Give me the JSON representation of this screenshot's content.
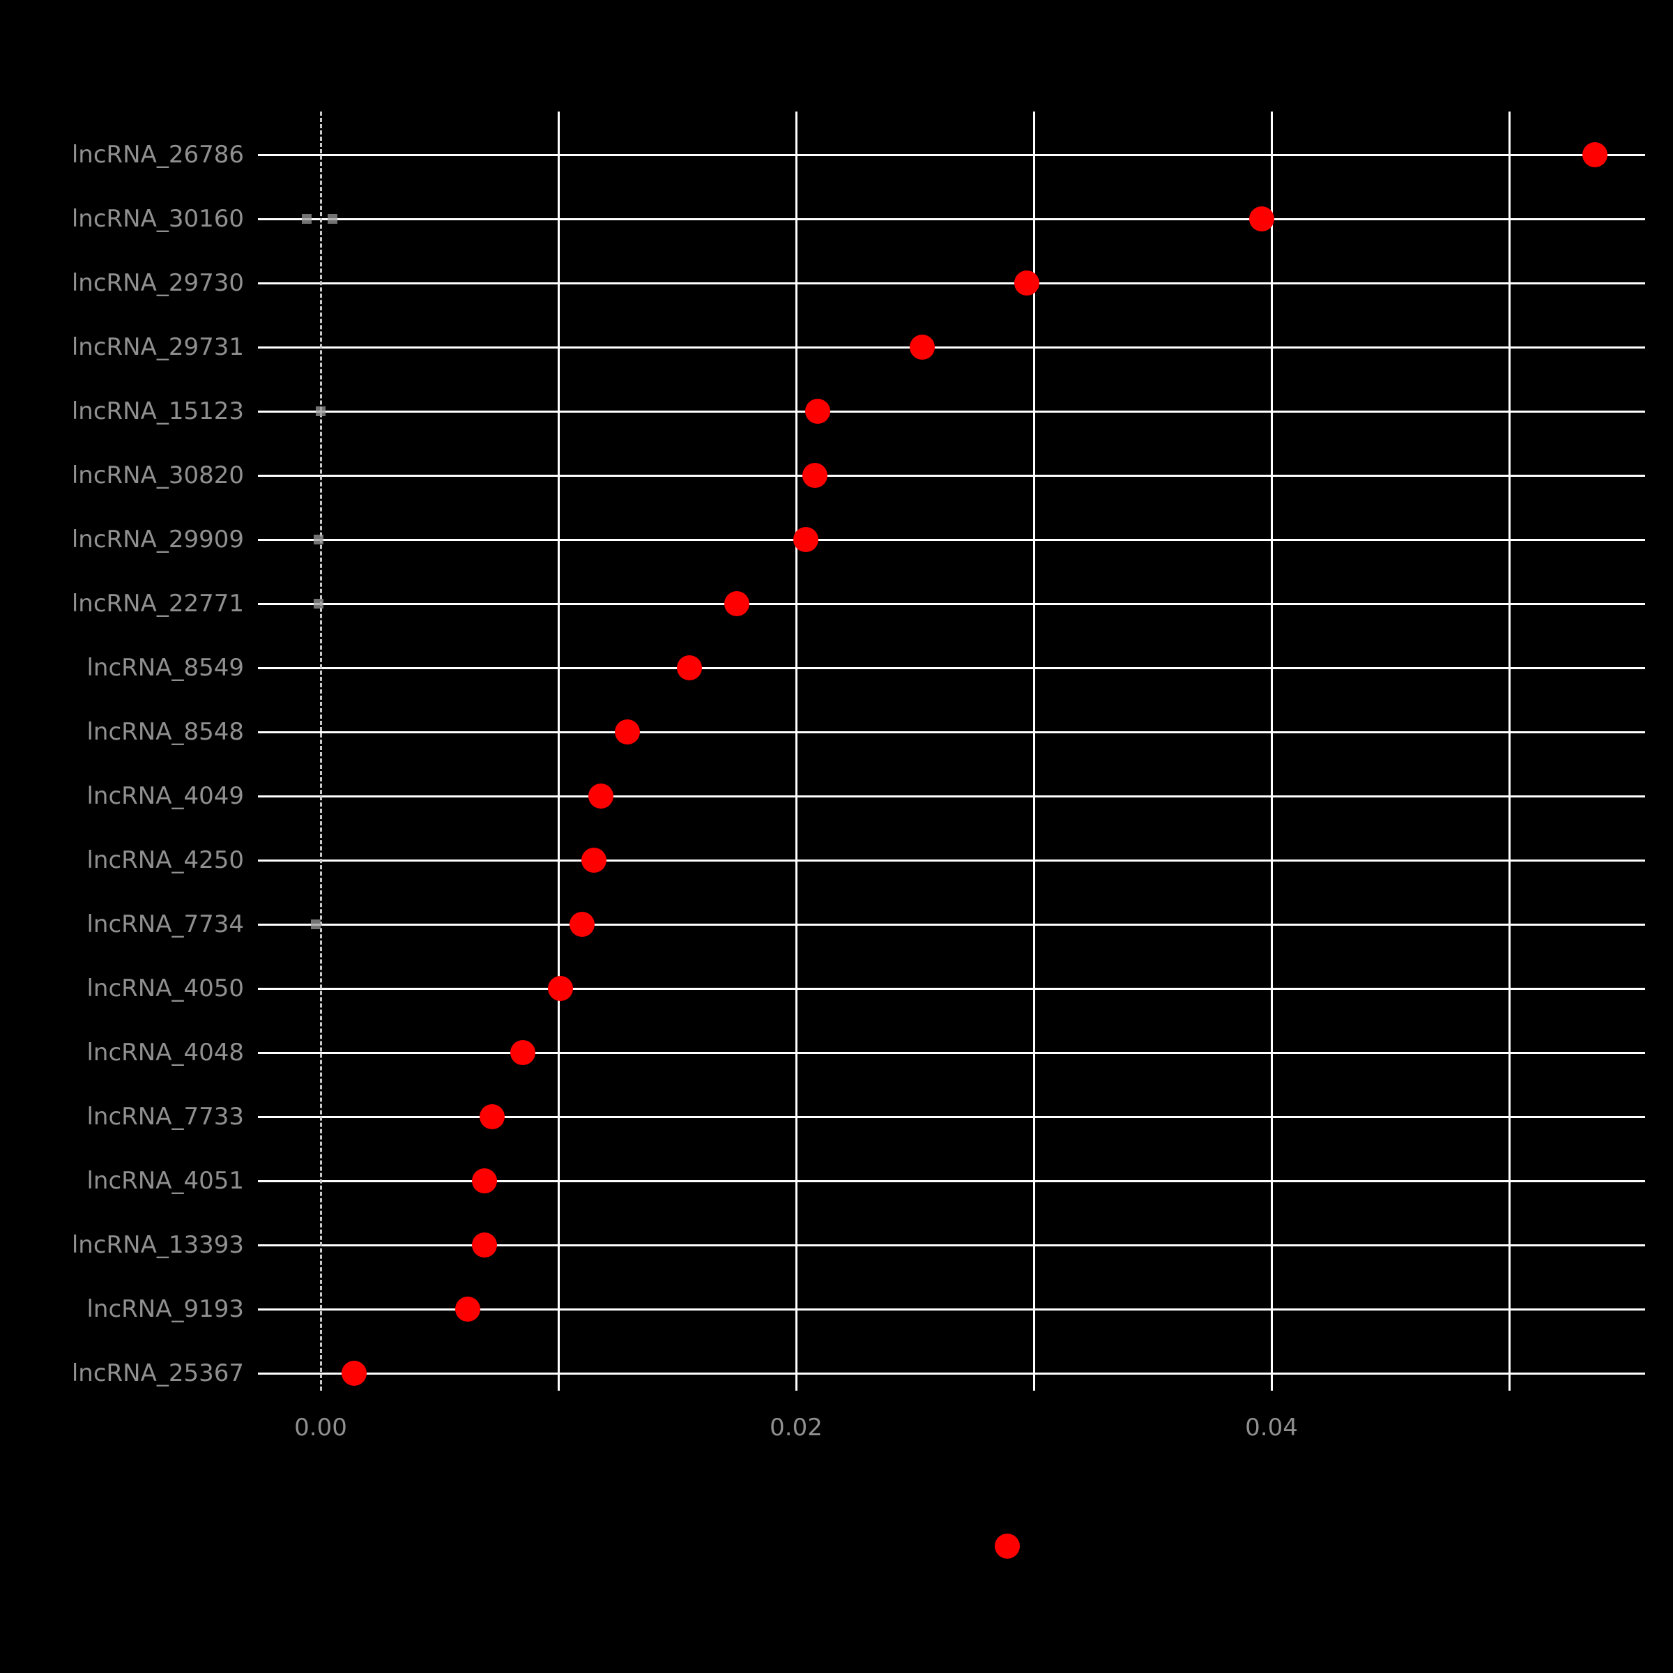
{
  "figure": {
    "background_color": "#000000",
    "grid_color": "#ffffff",
    "label_color": "#909090",
    "zero_line_color": "#cccccc",
    "near_zero_mark_color": "#999999"
  },
  "chart_data": {
    "type": "scatter",
    "subtype": "cleveland-dot-plot",
    "orientation": "horizontal",
    "title": "",
    "xlabel": "",
    "ylabel": "",
    "point_color": "#ff0000",
    "categories": [
      "lncRNA_26786",
      "lncRNA_30160",
      "lncRNA_29730",
      "lncRNA_29731",
      "lncRNA_15123",
      "lncRNA_30820",
      "lncRNA_29909",
      "lncRNA_22771",
      "lncRNA_8549",
      "lncRNA_8548",
      "lncRNA_4049",
      "lncRNA_4250",
      "lncRNA_7734",
      "lncRNA_4050",
      "lncRNA_4048",
      "lncRNA_7733",
      "lncRNA_4051",
      "lncRNA_13393",
      "lncRNA_9193",
      "lncRNA_25367"
    ],
    "values": [
      0.0536,
      0.0396,
      0.0297,
      0.0253,
      0.0209,
      0.0208,
      0.0204,
      0.0175,
      0.0155,
      0.0129,
      0.0118,
      0.0115,
      0.011,
      0.0101,
      0.0085,
      0.0072,
      0.0069,
      0.0069,
      0.0062,
      0.0014
    ],
    "near_zero_marks": [
      {
        "category": "lncRNA_30160",
        "values": [
          -0.0006,
          0.0005
        ]
      },
      {
        "category": "lncRNA_15123",
        "values": [
          0.0
        ]
      },
      {
        "category": "lncRNA_29909",
        "values": [
          -0.0001
        ]
      },
      {
        "category": "lncRNA_22771",
        "values": [
          -0.0001
        ]
      },
      {
        "category": "lncRNA_7734",
        "values": [
          -0.0002
        ]
      }
    ],
    "x_tick_labels": [
      "0.00",
      "0.02",
      "0.04"
    ],
    "x_tick_values": [
      0.0,
      0.02,
      0.04
    ],
    "x_gridline_values": [
      0.01,
      0.02,
      0.03,
      0.04,
      0.05
    ],
    "xlim": [
      -0.0026,
      0.0557
    ],
    "grid": true,
    "zero_reference_line": {
      "x": 0,
      "style": "dashed"
    },
    "legend": {
      "position": "bottom",
      "marker_color": "#ff0000",
      "label": ""
    }
  }
}
